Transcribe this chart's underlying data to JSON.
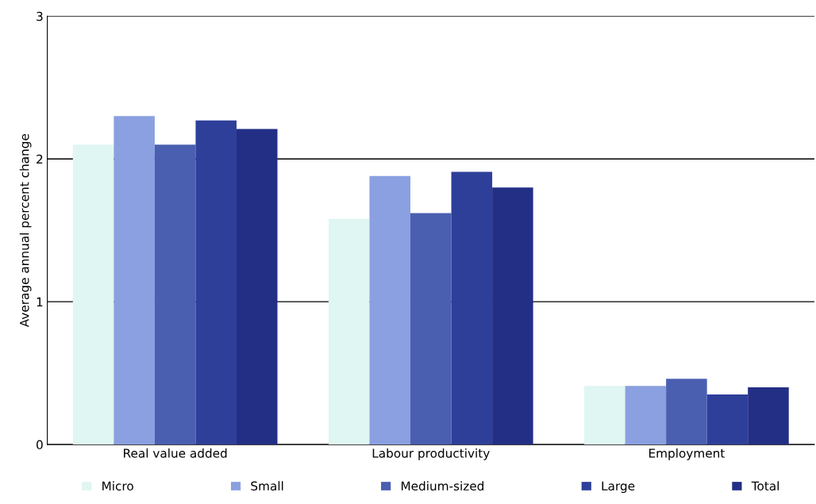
{
  "chart_data": {
    "type": "bar",
    "ylabel": "Average annual percent change",
    "categories": [
      "Real value added",
      "Labour productivity",
      "Employment"
    ],
    "series": [
      {
        "name": "Micro",
        "color": "#dff6f2",
        "values": [
          2.1,
          1.58,
          0.41
        ]
      },
      {
        "name": "Small",
        "color": "#8aa0e0",
        "values": [
          2.3,
          1.88,
          0.41
        ]
      },
      {
        "name": "Medium-sized",
        "color": "#4a5fb0",
        "values": [
          2.1,
          1.62,
          0.46
        ]
      },
      {
        "name": "Large",
        "color": "#2e3f9a",
        "values": [
          2.27,
          1.91,
          0.35
        ]
      },
      {
        "name": "Total",
        "color": "#232f85",
        "values": [
          2.21,
          1.8,
          0.4
        ]
      }
    ],
    "ylim": [
      0,
      3
    ],
    "yticks": [
      0,
      1,
      2,
      3
    ],
    "grid": "y",
    "legend": "bottom"
  }
}
